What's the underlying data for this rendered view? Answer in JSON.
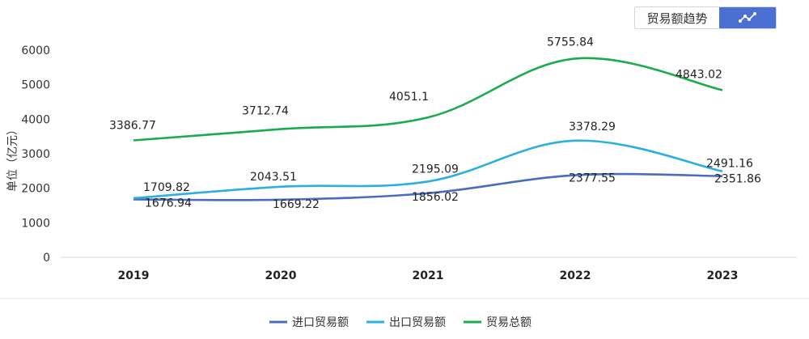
{
  "toggle": {
    "label": "贸易额趋势",
    "active_icon": "line-chart-icon",
    "active_color": "#4a70d4"
  },
  "chart_data": {
    "type": "line",
    "ylabel": "单位（亿元）",
    "xlabel": "",
    "title": "",
    "ylim": [
      0,
      6000
    ],
    "yticks": [
      0,
      1000,
      2000,
      3000,
      4000,
      5000,
      6000
    ],
    "categories": [
      "2019",
      "2020",
      "2021",
      "2022",
      "2023"
    ],
    "grid": false,
    "legend_position": "bottom",
    "smooth": true,
    "series": [
      {
        "name": "进口贸易额",
        "color": "#4a6cbf",
        "values": [
          1676.94,
          1669.22,
          1856.02,
          2377.55,
          2351.86
        ]
      },
      {
        "name": "出口贸易额",
        "color": "#29b0e0",
        "values": [
          1709.82,
          2043.51,
          2195.09,
          3378.29,
          2491.16
        ]
      },
      {
        "name": "贸易总额",
        "color": "#1aab4b",
        "values": [
          3386.77,
          3712.74,
          4051.1,
          5755.84,
          4843.02
        ]
      }
    ]
  }
}
